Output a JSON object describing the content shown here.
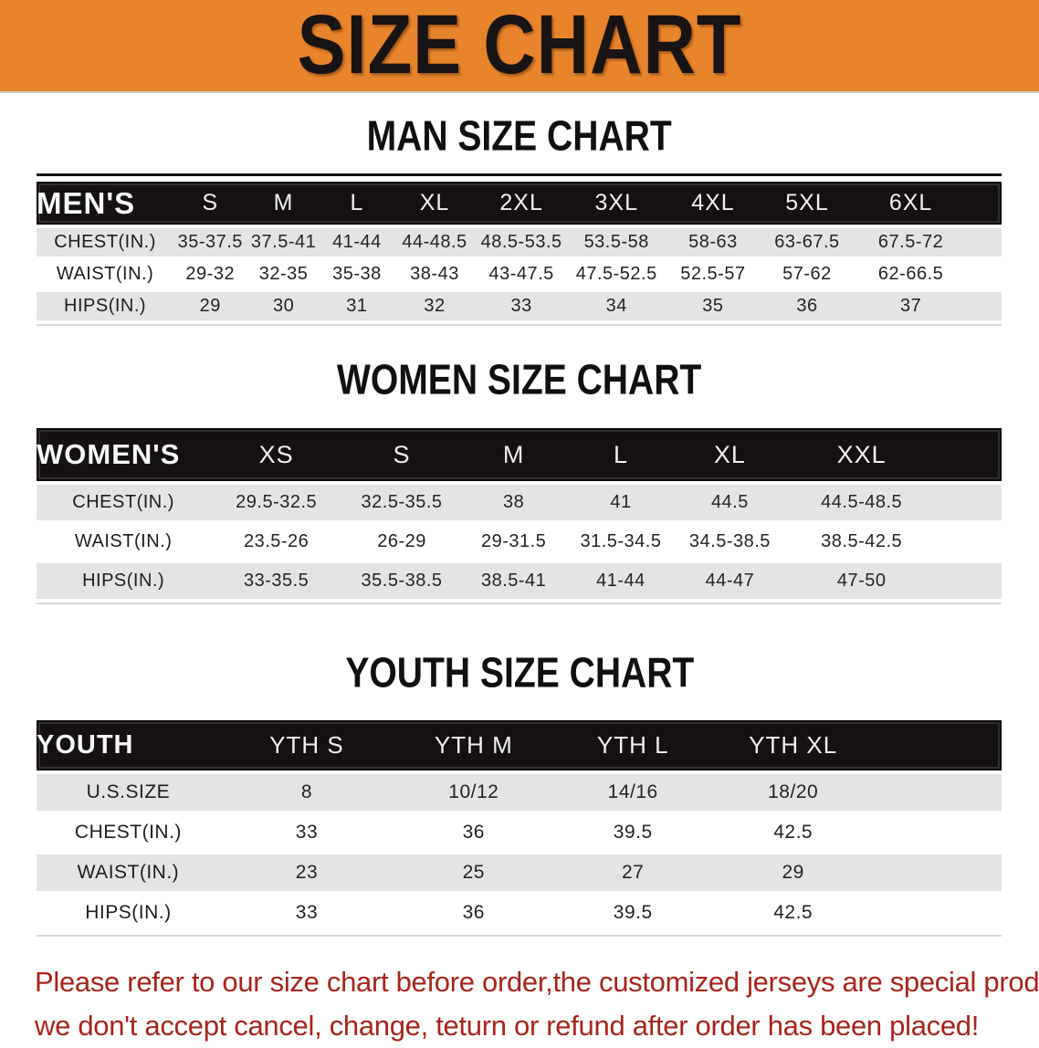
{
  "banner": {
    "title": "SIZE CHART",
    "bg_color": "#E8842B"
  },
  "sections": [
    {
      "title": "MAN SIZE CHART",
      "table": {
        "header_label": "MEN'S",
        "sizes": [
          "S",
          "M",
          "L",
          "XL",
          "2XL",
          "3XL",
          "4XL",
          "5XL",
          "6XL"
        ],
        "rows": [
          {
            "label": "CHEST(IN.)",
            "values": [
              "35-37.5",
              "37.5-41",
              "41-44",
              "44-48.5",
              "48.5-53.5",
              "53.5-58",
              "58-63",
              "63-67.5",
              "67.5-72"
            ]
          },
          {
            "label": "WAIST(IN.)",
            "values": [
              "29-32",
              "32-35",
              "35-38",
              "38-43",
              "43-47.5",
              "47.5-52.5",
              "52.5-57",
              "57-62",
              "62-66.5"
            ]
          },
          {
            "label": "HIPS(IN.)",
            "values": [
              "29",
              "30",
              "31",
              "32",
              "33",
              "34",
              "35",
              "36",
              "37"
            ]
          }
        ]
      }
    },
    {
      "title": "WOMEN SIZE CHART",
      "table": {
        "header_label": "WOMEN'S",
        "sizes": [
          "XS",
          "S",
          "M",
          "L",
          "XL",
          "XXL"
        ],
        "rows": [
          {
            "label": "CHEST(IN.)",
            "values": [
              "29.5-32.5",
              "32.5-35.5",
              "38",
              "41",
              "44.5",
              "44.5-48.5"
            ]
          },
          {
            "label": "WAIST(IN.)",
            "values": [
              "23.5-26",
              "26-29",
              "29-31.5",
              "31.5-34.5",
              "34.5-38.5",
              "38.5-42.5"
            ]
          },
          {
            "label": "HIPS(IN.)",
            "values": [
              "33-35.5",
              "35.5-38.5",
              "38.5-41",
              "41-44",
              "44-47",
              "47-50"
            ]
          }
        ]
      }
    },
    {
      "title": "YOUTH SIZE CHART",
      "table": {
        "header_label": "YOUTH",
        "sizes": [
          "YTH S",
          "YTH M",
          "YTH L",
          "YTH XL"
        ],
        "rows": [
          {
            "label": "U.S.SIZE",
            "values": [
              "8",
              "10/12",
              "14/16",
              "18/20"
            ]
          },
          {
            "label": "CHEST(IN.)",
            "values": [
              "33",
              "36",
              "39.5",
              "42.5"
            ]
          },
          {
            "label": "WAIST(IN.)",
            "values": [
              "23",
              "25",
              "27",
              "29"
            ]
          },
          {
            "label": "HIPS(IN.)",
            "values": [
              "33",
              "36",
              "39.5",
              "42.5"
            ]
          }
        ]
      }
    }
  ],
  "footer": {
    "line1": "Please refer to our size chart before order,the customized jerseys are special products,",
    "line2": "we don't accept cancel, change, teturn or refund after order has been placed!",
    "text_color": "#A8251D"
  },
  "colors": {
    "header_bar": "#151011",
    "row_shade": "#E2E4E5",
    "banner_orange": "#E8842B"
  }
}
